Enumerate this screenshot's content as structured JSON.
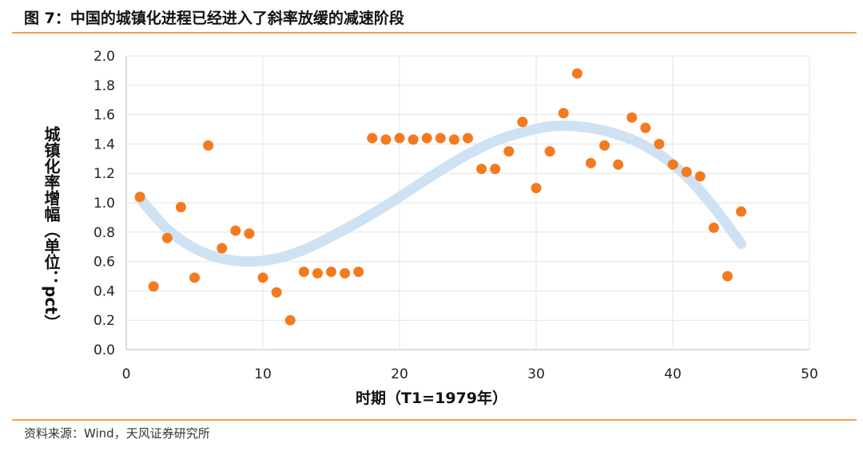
{
  "page": {
    "title": "图 7：中国的城镇化进程已经进入了斜率放缓的减速阶段",
    "source": "资料来源：Wind，天风证券研究所"
  },
  "colors": {
    "accent": "#f0a24a",
    "dots": "#f47a1f",
    "trend": "#cfe2f3"
  },
  "chart_data": {
    "type": "scatter",
    "title": "",
    "xlabel": "时期（T1=1979年）",
    "ylabel": "城镇化率增幅（单位：pct）",
    "xlim": [
      0,
      50
    ],
    "ylim": [
      0,
      2.0
    ],
    "xticks": [
      "0",
      "10",
      "20",
      "30",
      "40",
      "50"
    ],
    "yticks": [
      "0.0",
      "0.2",
      "0.4",
      "0.6",
      "0.8",
      "1.0",
      "1.2",
      "1.4",
      "1.6",
      "1.8",
      "2.0"
    ],
    "grid": true,
    "series": [
      {
        "x": [
          1,
          2,
          3,
          4,
          5,
          6,
          7,
          8,
          9,
          10,
          11,
          12,
          13,
          14,
          15,
          16,
          17,
          18,
          19,
          20,
          21,
          22,
          23,
          24,
          25,
          26,
          27,
          28,
          29,
          30,
          31,
          32,
          33,
          34,
          35,
          36,
          37,
          38,
          39,
          40,
          41,
          42,
          43,
          44,
          45
        ],
        "y": [
          1.04,
          0.43,
          0.76,
          0.97,
          0.49,
          1.39,
          0.69,
          0.81,
          0.79,
          0.49,
          0.39,
          0.2,
          0.53,
          0.52,
          0.53,
          0.52,
          0.53,
          1.44,
          1.43,
          1.44,
          1.43,
          1.44,
          1.44,
          1.43,
          1.44,
          1.23,
          1.23,
          1.35,
          1.55,
          1.1,
          1.35,
          1.61,
          1.88,
          1.27,
          1.39,
          1.26,
          1.58,
          1.51,
          1.4,
          1.26,
          1.21,
          1.18,
          0.83,
          0.5,
          0.94
        ]
      }
    ],
    "trendline": {
      "type": "polynomial",
      "x": [
        1,
        3,
        5,
        7,
        9,
        11,
        13,
        15,
        17,
        19,
        21,
        23,
        25,
        27,
        29,
        31,
        33,
        35,
        37,
        39,
        41,
        43,
        45
      ],
      "y": [
        1.03,
        0.82,
        0.69,
        0.62,
        0.6,
        0.62,
        0.68,
        0.77,
        0.87,
        0.98,
        1.1,
        1.22,
        1.33,
        1.42,
        1.48,
        1.52,
        1.52,
        1.49,
        1.43,
        1.33,
        1.18,
        0.97,
        0.72
      ]
    }
  }
}
